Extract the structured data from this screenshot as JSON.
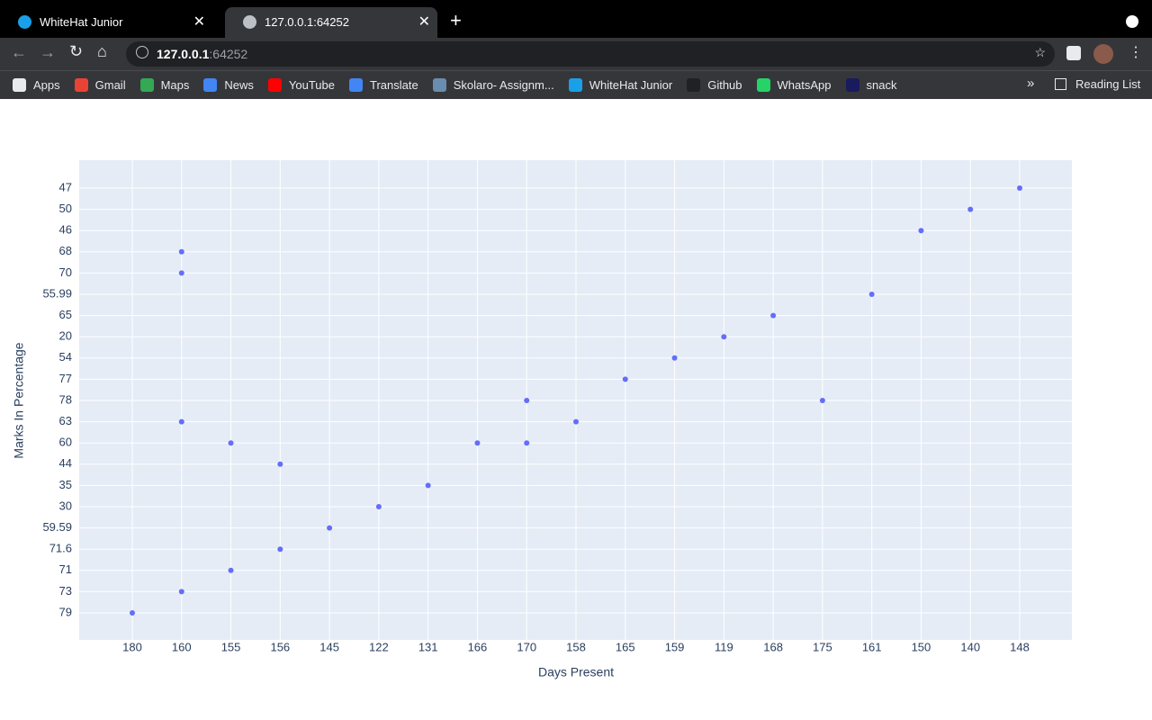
{
  "browser": {
    "tabs": [
      "WhiteHat Junior",
      "127.0.0.1:64252"
    ],
    "url_host": "127.0.0.1",
    "url_port": ":64252",
    "bookmarks": [
      "Apps",
      "Gmail",
      "Maps",
      "News",
      "YouTube",
      "Translate",
      "Skolaro- Assignm...",
      "WhiteHat Junior",
      "Github",
      "WhatsApp",
      "snack"
    ],
    "more": "»",
    "reading_list": "Reading List"
  },
  "chart_data": {
    "type": "scatter",
    "x_label": "Days Present",
    "y_label": "Marks In Percentage",
    "color": "#636efa",
    "grid": true,
    "categories": [
      180,
      160,
      155,
      156,
      145,
      122,
      131,
      166,
      170,
      158,
      165,
      159,
      119,
      168,
      175,
      161,
      150,
      140,
      148
    ],
    "ycategories": [
      79,
      73,
      71,
      71.6,
      59.59,
      30,
      35,
      44,
      60,
      63,
      78,
      77,
      54,
      20,
      65,
      55.99,
      70,
      68,
      46,
      50,
      47
    ],
    "x": [
      180,
      160,
      155,
      156,
      145,
      122,
      131,
      156,
      166,
      158,
      170,
      165,
      159,
      119,
      168,
      161,
      160,
      160,
      150,
      140,
      148,
      170,
      155,
      160,
      175
    ],
    "y": [
      79,
      73,
      71,
      71.6,
      59.59,
      30,
      35,
      44,
      60,
      63,
      78,
      77,
      54,
      20,
      65,
      55.99,
      70,
      68,
      46,
      50,
      47,
      60,
      60,
      63,
      78
    ]
  }
}
